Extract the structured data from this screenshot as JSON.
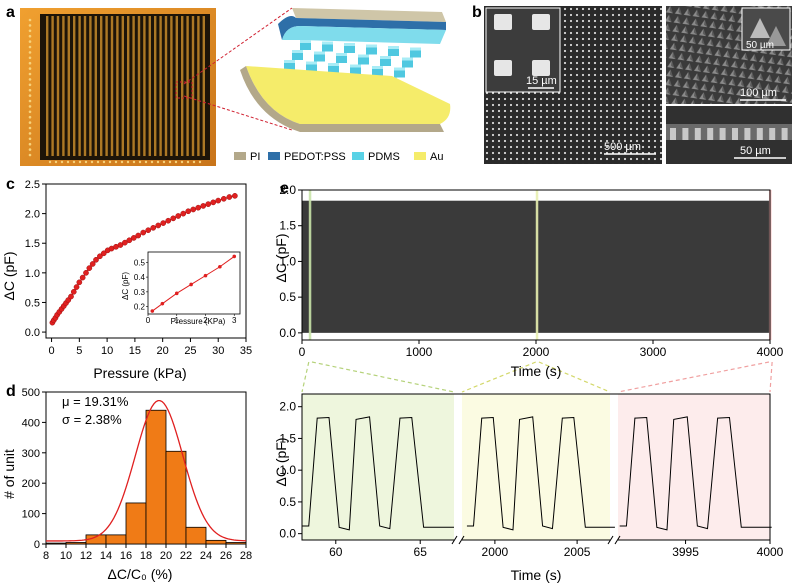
{
  "panel_letters": {
    "a": "a",
    "b": "b",
    "c": "c",
    "d": "d",
    "e": "e"
  },
  "panel_a": {
    "legend": [
      {
        "label": "PI",
        "color": "#b3a88a"
      },
      {
        "label": "PEDOT:PSS",
        "color": "#2e6fa8"
      },
      {
        "label": "PDMS",
        "color": "#59d2e6"
      },
      {
        "label": "Au",
        "color": "#f5ec6a"
      }
    ],
    "colors": {
      "pcb_orange": "#e8921a",
      "pcb_dark": "#1a1208"
    }
  },
  "panel_b": {
    "main_scale": "500 µm",
    "inset_scale": "15 µm",
    "top_right_scale": "100 µm",
    "top_right_inset_scale": "50 µm",
    "bottom_right_scale": "50 µm"
  },
  "chart_data": [
    {
      "id": "c",
      "type": "scatter",
      "xlabel": "Pressure (kPa)",
      "ylabel": "ΔC (pF)",
      "xlim": [
        -1,
        35
      ],
      "ylim": [
        -0.1,
        2.5
      ],
      "xticks": [
        "0",
        "5",
        "10",
        "15",
        "20",
        "25",
        "30",
        "35"
      ],
      "yticks": [
        "0.0",
        "0.5",
        "1.0",
        "1.5",
        "2.0",
        "2.5"
      ],
      "x": [
        0.15,
        0.4,
        0.7,
        1.0,
        1.4,
        1.8,
        2.2,
        2.6,
        3.0,
        3.5,
        4.0,
        4.5,
        5.0,
        5.6,
        6.2,
        6.8,
        7.4,
        8.0,
        8.7,
        9.4,
        10.1,
        10.8,
        11.6,
        12.4,
        13.2,
        14.0,
        14.8,
        15.6,
        16.5,
        17.4,
        18.3,
        19.2,
        20.1,
        21.0,
        21.9,
        22.8,
        23.7,
        24.6,
        25.5,
        26.4,
        27.3,
        28.2,
        29.1,
        30.0,
        31.0,
        32.0,
        33.0
      ],
      "y": [
        0.16,
        0.2,
        0.24,
        0.29,
        0.34,
        0.39,
        0.44,
        0.49,
        0.54,
        0.6,
        0.68,
        0.76,
        0.84,
        0.92,
        1.0,
        1.08,
        1.15,
        1.22,
        1.28,
        1.33,
        1.38,
        1.41,
        1.44,
        1.47,
        1.51,
        1.55,
        1.59,
        1.63,
        1.68,
        1.72,
        1.76,
        1.8,
        1.84,
        1.88,
        1.92,
        1.96,
        2.0,
        2.04,
        2.07,
        2.1,
        2.13,
        2.16,
        2.19,
        2.22,
        2.25,
        2.28,
        2.3
      ],
      "color": "#e02020",
      "inset": {
        "xlabel": "Pressure (KPa)",
        "ylabel": "ΔC (pF)",
        "xlim": [
          0,
          3.2
        ],
        "ylim": [
          0.15,
          0.57
        ],
        "xticks": [
          "0",
          "1",
          "2",
          "3"
        ],
        "yticks": [
          "0.2",
          "0.3",
          "0.4",
          "0.5"
        ],
        "x": [
          0.15,
          0.5,
          1.0,
          1.5,
          2.0,
          2.5,
          3.0
        ],
        "y": [
          0.17,
          0.22,
          0.29,
          0.35,
          0.41,
          0.47,
          0.54
        ]
      }
    },
    {
      "id": "d",
      "type": "bar",
      "xlabel": "ΔC/C₀ (%)",
      "ylabel": "# of unit",
      "xlim": [
        8,
        28
      ],
      "ylim": [
        0,
        500
      ],
      "xticks": [
        "8",
        "10",
        "12",
        "14",
        "16",
        "18",
        "20",
        "22",
        "24",
        "26",
        "28"
      ],
      "yticks": [
        "0",
        "100",
        "200",
        "300",
        "400",
        "500"
      ],
      "bin_centers": [
        9,
        11,
        13,
        15,
        17,
        19,
        21,
        23,
        25,
        27
      ],
      "values": [
        3,
        5,
        30,
        30,
        135,
        440,
        305,
        55,
        12,
        5
      ],
      "bar_color": "#f07b16",
      "fit": {
        "mu": 19.31,
        "sigma": 2.38,
        "peak": 462,
        "color": "#e02020"
      },
      "annotation_mu": "μ = 19.31%",
      "annotation_sigma": "σ = 2.38%"
    },
    {
      "id": "e-top",
      "type": "area",
      "xlabel": "Time (s)",
      "ylabel": "ΔC (pF)",
      "xlim": [
        0,
        4000
      ],
      "ylim": [
        -0.1,
        2.0
      ],
      "xticks": [
        "0",
        "1000",
        "2000",
        "3000",
        "4000"
      ],
      "yticks": [
        "0.0",
        "0.5",
        "1.0",
        "1.5",
        "2.0"
      ],
      "signal_low": 0.0,
      "signal_high": 1.85,
      "highlight_windows": [
        {
          "from": 58,
          "to": 68,
          "color": "#c9e3a8"
        },
        {
          "from": 1998,
          "to": 2008,
          "color": "#e8efb0"
        },
        {
          "from": 3991,
          "to": 4001,
          "color": "#f6b8b8"
        }
      ]
    },
    {
      "id": "e-bottom",
      "type": "line",
      "xlabel": "Time (s)",
      "ylabel": "ΔC (pF)",
      "ylim": [
        -0.1,
        2.2
      ],
      "yticks": [
        "0.0",
        "0.5",
        "1.0",
        "1.5",
        "2.0"
      ],
      "segments": [
        {
          "xlim": [
            58,
            67
          ],
          "xticks": [
            "60",
            "65"
          ],
          "tick_values": [
            60,
            65
          ],
          "bg": "#eef6dd"
        },
        {
          "xlim": [
            1998,
            2007
          ],
          "xticks": [
            "2000",
            "2005"
          ],
          "tick_values": [
            2000,
            2005
          ],
          "bg": "#fbfbe2"
        },
        {
          "xlim": [
            3991,
            4000
          ],
          "xticks": [
            "3995",
            "4000"
          ],
          "tick_values": [
            3995,
            4000
          ],
          "bg": "#fdecec"
        }
      ],
      "pulse_low": 0.08,
      "pulse_high": 1.83
    }
  ]
}
